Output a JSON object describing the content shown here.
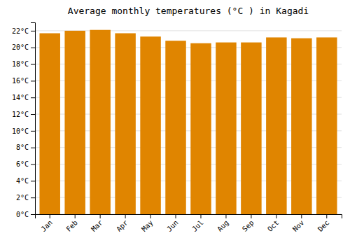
{
  "chart_data": {
    "type": "bar",
    "title": "Average monthly temperatures (°C ) in Kagadi",
    "categories": [
      "Jan",
      "Feb",
      "Mar",
      "Apr",
      "May",
      "Jun",
      "Jul",
      "Aug",
      "Sep",
      "Oct",
      "Nov",
      "Dec"
    ],
    "values": [
      21.7,
      22.0,
      22.1,
      21.7,
      21.3,
      20.8,
      20.5,
      20.6,
      20.6,
      21.2,
      21.1,
      21.2
    ],
    "color": "#E08500",
    "ylim": [
      0,
      23
    ],
    "yticks": [
      {
        "value": 0,
        "label": "0°C"
      },
      {
        "value": 2,
        "label": "2°C"
      },
      {
        "value": 4,
        "label": "4°C"
      },
      {
        "value": 6,
        "label": "6°C"
      },
      {
        "value": 8,
        "label": "8°C"
      },
      {
        "value": 10,
        "label": "10°C"
      },
      {
        "value": 12,
        "label": "12°C"
      },
      {
        "value": 14,
        "label": "14°C"
      },
      {
        "value": 16,
        "label": "16°C"
      },
      {
        "value": 18,
        "label": "18°C"
      },
      {
        "value": 20,
        "label": "20°C"
      },
      {
        "value": 22,
        "label": "22°C"
      }
    ],
    "grid": true
  }
}
